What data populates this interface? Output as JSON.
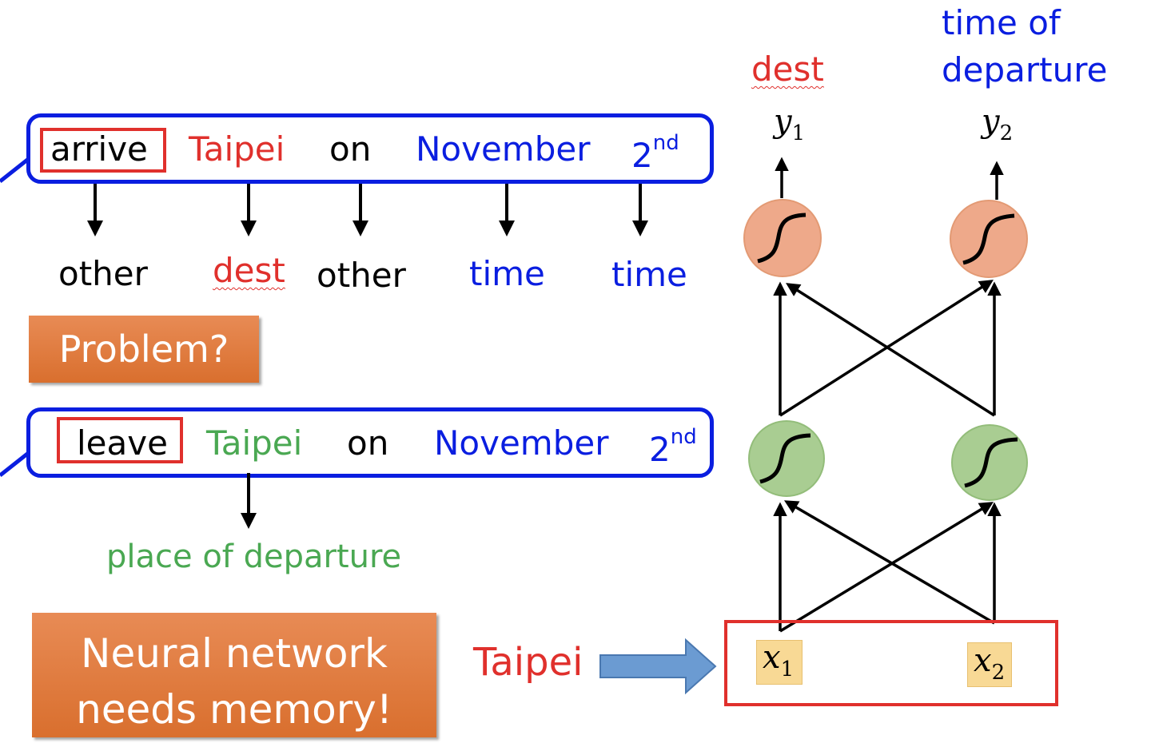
{
  "colors": {
    "black": "#000000",
    "red": "#e0302c",
    "blue": "#0a1ee0",
    "green": "#4aa852",
    "orange": "#e07a3d",
    "neuron_orange": "#eea98a",
    "neuron_green": "#a9cd92",
    "input_yellow": "#f8d995",
    "arrow_blue": "#6b9bd2"
  },
  "icons": [
    "sigmoid-icon",
    "block-arrow-icon",
    "down-arrow-icon"
  ],
  "sentence1": {
    "words": [
      "arrive",
      "Taipei",
      "on",
      "November"
    ],
    "ordinal": {
      "base": "2",
      "sup": "nd"
    }
  },
  "tags1": [
    "other",
    "dest",
    "other",
    "time",
    "time"
  ],
  "problem_label": "Problem?",
  "sentence2": {
    "words": [
      "leave",
      "Taipei",
      "on",
      "November"
    ],
    "ordinal": {
      "base": "2",
      "sup": "nd"
    }
  },
  "tag2": "place of departure",
  "memory_label": {
    "line1": "Neural network",
    "line2": "needs memory!"
  },
  "input_word": "Taipei",
  "network": {
    "outputs": [
      {
        "name": "y",
        "index": "1",
        "label": "dest"
      },
      {
        "name": "y",
        "index": "2",
        "label_line1": "time of",
        "label_line2": "departure"
      }
    ],
    "inputs": [
      {
        "name": "x",
        "index": "1"
      },
      {
        "name": "x",
        "index": "2"
      }
    ]
  }
}
